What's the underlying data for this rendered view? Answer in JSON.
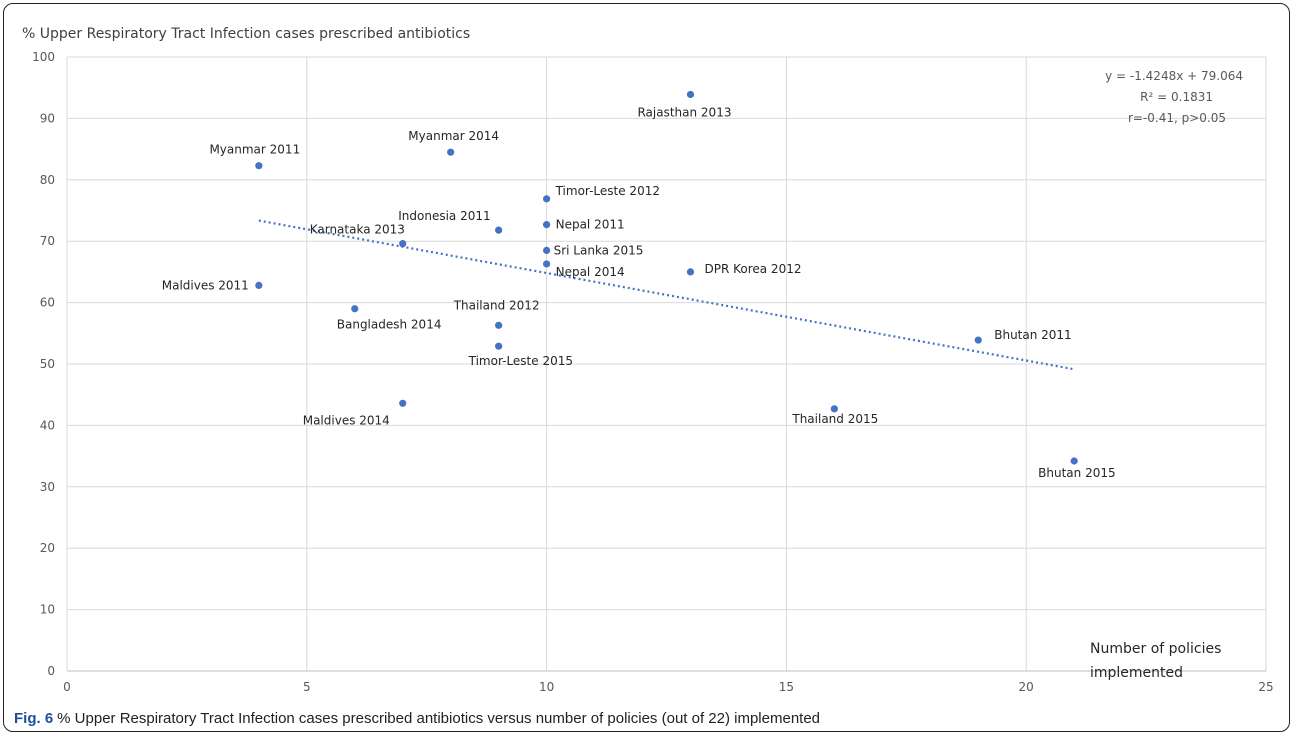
{
  "chart_data": {
    "type": "scatter",
    "ylabel": "% Upper Respiratory Tract Infection cases prescribed antibiotics",
    "xlabel_lines": [
      "Number of policies",
      "implemented"
    ],
    "xlim": [
      0,
      25
    ],
    "ylim": [
      0,
      100
    ],
    "x_ticks": [
      0,
      5,
      10,
      15,
      20,
      25
    ],
    "y_ticks": [
      0,
      10,
      20,
      30,
      40,
      50,
      60,
      70,
      80,
      90,
      100
    ],
    "grid": true,
    "point_color": "#4472c4",
    "trendline_color": "#4472c4",
    "trendline": {
      "slope": -1.4248,
      "intercept": 79.064,
      "x_range": [
        4,
        21
      ],
      "style": "dotted"
    },
    "equation_lines": [
      "y = -1.4248x + 79.064",
      "R² = 0.1831",
      "r=-0.41, p>0.05"
    ],
    "points": [
      {
        "label": "Myanmar 2011",
        "x": 4,
        "y": 82.3
      },
      {
        "label": "Maldives 2011",
        "x": 4,
        "y": 62.8
      },
      {
        "label": "Bangladesh 2014",
        "x": 6,
        "y": 59.0
      },
      {
        "label": "Karnataka 2013",
        "x": 7,
        "y": 69.6
      },
      {
        "label": "Maldives 2014",
        "x": 7,
        "y": 43.6
      },
      {
        "label": "Myanmar 2014",
        "x": 8,
        "y": 84.5
      },
      {
        "label": "Indonesia 2011",
        "x": 9,
        "y": 71.8
      },
      {
        "label": "Thailand 2012",
        "x": 9,
        "y": 56.3
      },
      {
        "label": "Timor-Leste 2015",
        "x": 9,
        "y": 52.9
      },
      {
        "label": "Timor-Leste 2012",
        "x": 10,
        "y": 76.9
      },
      {
        "label": "Nepal 2011",
        "x": 10,
        "y": 72.7
      },
      {
        "label": "Sri Lanka 2015",
        "x": 10,
        "y": 68.5
      },
      {
        "label": "Nepal 2014",
        "x": 10,
        "y": 66.3
      },
      {
        "label": "Rajasthan 2013",
        "x": 13,
        "y": 93.9
      },
      {
        "label": "DPR Korea 2012",
        "x": 13,
        "y": 65.0
      },
      {
        "label": "Thailand 2015",
        "x": 16,
        "y": 42.7
      },
      {
        "label": "Bhutan 2011",
        "x": 19,
        "y": 53.9
      },
      {
        "label": "Bhutan 2015",
        "x": 21,
        "y": 34.2
      }
    ]
  },
  "caption": {
    "fig_label": "Fig. 6",
    "text": "% Upper Respiratory Tract Infection cases prescribed antibiotics versus number of policies (out of 22) implemented"
  }
}
